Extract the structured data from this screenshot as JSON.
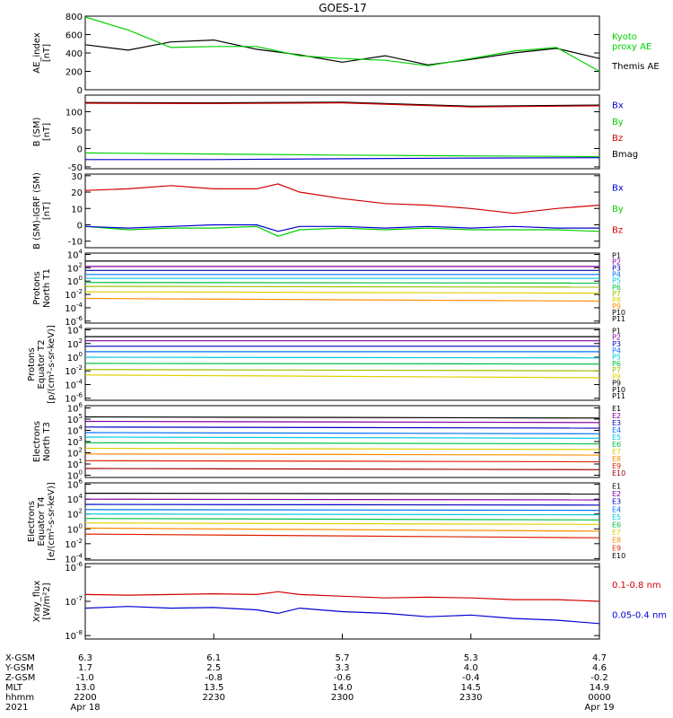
{
  "title": "GOES-17",
  "colors": {
    "black": "#000000",
    "green": "#00d000",
    "red": "#d00000",
    "blue": "#0000d0",
    "dark_red": "#8b0000",
    "purple": "#8000a0",
    "navy": "#0000c0",
    "blue2": "#0070ff",
    "cyan": "#00c8e0",
    "teal": "#00c8a0",
    "grn2": "#00c040",
    "yellow_green": "#a0c000",
    "yellow": "#e0d000",
    "orange": "#ff8c00",
    "red2": "#e02000",
    "maroon": "#a00000"
  },
  "chart_data": [
    {
      "type": "line",
      "id": "ae",
      "ylabel": "AE_index\n[nT]",
      "scale": "linear",
      "ylim": [
        0,
        800
      ],
      "yticks": [
        "0",
        "200",
        "400",
        "600",
        "800"
      ],
      "x": [
        0,
        10,
        20,
        30,
        40,
        50,
        60,
        70,
        80,
        90,
        100,
        110,
        120
      ],
      "series": [
        {
          "name": "Themis AE",
          "color": "#000000",
          "values": [
            490,
            430,
            520,
            540,
            440,
            380,
            300,
            370,
            270,
            330,
            400,
            450,
            340
          ]
        },
        {
          "name": "Kyoto proxy AE",
          "color": "#00d000",
          "values": [
            790,
            650,
            460,
            470,
            470,
            370,
            340,
            320,
            260,
            340,
            420,
            460,
            200
          ]
        }
      ],
      "legend": [
        "Kyoto\nproxy AE",
        "Themis AE"
      ]
    },
    {
      "type": "line",
      "id": "bsm",
      "ylabel": "B (SM)\n[nT]",
      "scale": "linear",
      "ylim": [
        -55,
        145
      ],
      "yticks": [
        "-50",
        "0",
        "50",
        "100"
      ],
      "x": [
        0,
        30,
        60,
        90,
        120
      ],
      "series": [
        {
          "name": "Bmag",
          "color": "#000000",
          "values": [
            125,
            124,
            126,
            115,
            118
          ]
        },
        {
          "name": "Bz",
          "color": "#d00000",
          "values": [
            123,
            122,
            124,
            113,
            116
          ]
        },
        {
          "name": "By",
          "color": "#00d000",
          "values": [
            -12,
            -15,
            -18,
            -20,
            -22
          ]
        },
        {
          "name": "Bx",
          "color": "#0000d0",
          "values": [
            -30,
            -30,
            -28,
            -26,
            -25
          ]
        }
      ],
      "legend": [
        "Bx",
        "By",
        "Bz",
        "Bmag"
      ]
    },
    {
      "type": "line",
      "id": "bsm_igrf",
      "ylabel": "B (SM)-IGRF (SM)\n[nT]",
      "scale": "linear",
      "ylim": [
        -14,
        31
      ],
      "yticks": [
        "-10",
        "0",
        "10",
        "20",
        "30"
      ],
      "x": [
        0,
        10,
        20,
        30,
        40,
        45,
        50,
        60,
        70,
        80,
        90,
        100,
        110,
        120
      ],
      "series": [
        {
          "name": "Bz",
          "color": "#d00000",
          "values": [
            21,
            22,
            24,
            22,
            22,
            25,
            20,
            16,
            13,
            12,
            10,
            7,
            10,
            12
          ]
        },
        {
          "name": "By",
          "color": "#00d000",
          "values": [
            -1,
            -3,
            -2,
            -2,
            -1,
            -7,
            -3,
            -2,
            -3,
            -2,
            -3,
            -3,
            -3,
            -4
          ]
        },
        {
          "name": "Bx",
          "color": "#0000d0",
          "values": [
            -1,
            -2,
            -1,
            0,
            0,
            -4,
            -1,
            -1,
            -2,
            -1,
            -2,
            -1,
            -2,
            -2
          ]
        }
      ],
      "legend": [
        "Bx",
        "By",
        "Bz"
      ]
    },
    {
      "type": "line",
      "id": "protons_t1",
      "ylabel": "Protons\nNorth T1",
      "scale": "log",
      "ylim": [
        -6.3,
        4.2
      ],
      "yticks": [
        "10^-6",
        "10^-4",
        "10^-2",
        "10^0",
        "10^2",
        "10^4"
      ],
      "x": [
        0,
        120
      ],
      "series": [
        {
          "name": "P1",
          "color": "#000000",
          "values": [
            3.0,
            3.0
          ]
        },
        {
          "name": "P2",
          "color": "#8000a0",
          "values": [
            2.2,
            2.2
          ]
        },
        {
          "name": "P3",
          "color": "#0000c0",
          "values": [
            1.6,
            1.6
          ]
        },
        {
          "name": "P4",
          "color": "#0070ff",
          "values": [
            1.0,
            1.0
          ]
        },
        {
          "name": "P5",
          "color": "#00c8e0",
          "values": [
            0.4,
            0.4
          ]
        },
        {
          "name": "P6",
          "color": "#00c040",
          "values": [
            -0.2,
            -0.3
          ]
        },
        {
          "name": "P7",
          "color": "#a0c000",
          "values": [
            -0.8,
            -0.9
          ]
        },
        {
          "name": "P8",
          "color": "#e0d000",
          "values": [
            -1.6,
            -1.8
          ]
        },
        {
          "name": "P9",
          "color": "#ff8c00",
          "values": [
            -2.6,
            -3.0
          ]
        }
      ],
      "legend": [
        "P1",
        "P2",
        "P3",
        "P4",
        "P5",
        "P6",
        "P7",
        "P8",
        "P9",
        "P10",
        "P11"
      ]
    },
    {
      "type": "line",
      "id": "protons_t2",
      "ylabel": "Protons\nEquator T2\n[p/(cm²-s-sr-keV)]",
      "scale": "log",
      "ylim": [
        -6.3,
        4.2
      ],
      "yticks": [
        "10^-6",
        "10^-4",
        "10^-2",
        "10^0",
        "10^2",
        "10^4"
      ],
      "x": [
        0,
        120
      ],
      "series": [
        {
          "name": "P1",
          "color": "#000000",
          "values": [
            3.0,
            3.0
          ]
        },
        {
          "name": "P2",
          "color": "#8000a0",
          "values": [
            2.4,
            2.4
          ]
        },
        {
          "name": "P3",
          "color": "#0000c0",
          "values": [
            1.6,
            1.6
          ]
        },
        {
          "name": "P4",
          "color": "#0070ff",
          "values": [
            0.8,
            0.8
          ]
        },
        {
          "name": "P5",
          "color": "#00c8e0",
          "values": [
            0.0,
            -0.1
          ]
        },
        {
          "name": "P6",
          "color": "#00c040",
          "values": [
            -0.9,
            -1.0
          ]
        },
        {
          "name": "P7",
          "color": "#a0c000",
          "values": [
            -1.8,
            -2.0
          ]
        },
        {
          "name": "P8",
          "color": "#e0d000",
          "values": [
            -2.6,
            -3.0
          ]
        }
      ],
      "legend": [
        "P1",
        "P2",
        "P3",
        "P4",
        "P5",
        "P6",
        "P7",
        "P8",
        "P9",
        "P10",
        "P11"
      ]
    },
    {
      "type": "line",
      "id": "electrons_t3",
      "ylabel": "Electrons\nNorth T3",
      "scale": "log",
      "ylim": [
        -0.2,
        6.2
      ],
      "yticks": [
        "10^0",
        "10^1",
        "10^2",
        "10^3",
        "10^4",
        "10^5",
        "10^6"
      ],
      "x": [
        0,
        120
      ],
      "series": [
        {
          "name": "E1",
          "color": "#000000",
          "values": [
            5.2,
            5.1
          ]
        },
        {
          "name": "E2",
          "color": "#8000a0",
          "values": [
            4.8,
            4.7
          ]
        },
        {
          "name": "E3",
          "color": "#0000c0",
          "values": [
            4.3,
            4.2
          ]
        },
        {
          "name": "E4",
          "color": "#0070ff",
          "values": [
            3.8,
            3.7
          ]
        },
        {
          "name": "E5",
          "color": "#00c8e0",
          "values": [
            3.4,
            3.3
          ]
        },
        {
          "name": "E6",
          "color": "#00c040",
          "values": [
            2.9,
            2.8
          ]
        },
        {
          "name": "E7",
          "color": "#e0d000",
          "values": [
            2.4,
            2.3
          ]
        },
        {
          "name": "E8",
          "color": "#ff8c00",
          "values": [
            1.9,
            1.8
          ]
        },
        {
          "name": "E9",
          "color": "#e02000",
          "values": [
            1.3,
            1.2
          ]
        },
        {
          "name": "E10",
          "color": "#a00000",
          "values": [
            0.6,
            0.5
          ]
        }
      ],
      "legend": [
        "E1",
        "E2",
        "E3",
        "E4",
        "E5",
        "E6",
        "E7",
        "E8",
        "E9",
        "E10"
      ]
    },
    {
      "type": "line",
      "id": "electrons_t4",
      "ylabel": "Electrons\nEquator T4\n[e/(cm²-s-sr-keV)]",
      "scale": "log",
      "ylim": [
        -4.2,
        6.2
      ],
      "yticks": [
        "10^-4",
        "10^-2",
        "10^0",
        "10^2",
        "10^4",
        "10^6"
      ],
      "x": [
        0,
        120
      ],
      "series": [
        {
          "name": "E1",
          "color": "#000000",
          "values": [
            4.8,
            4.7
          ]
        },
        {
          "name": "E2",
          "color": "#8000a0",
          "values": [
            4.0,
            3.9
          ]
        },
        {
          "name": "E3",
          "color": "#0000c0",
          "values": [
            3.3,
            3.2
          ]
        },
        {
          "name": "E4",
          "color": "#0070ff",
          "values": [
            2.6,
            2.5
          ]
        },
        {
          "name": "E5",
          "color": "#00c8e0",
          "values": [
            2.0,
            1.9
          ]
        },
        {
          "name": "E6",
          "color": "#00c040",
          "values": [
            1.4,
            1.2
          ]
        },
        {
          "name": "E7",
          "color": "#e0d000",
          "values": [
            0.8,
            0.6
          ]
        },
        {
          "name": "E8",
          "color": "#ff8c00",
          "values": [
            0.1,
            -0.3
          ]
        },
        {
          "name": "E9",
          "color": "#e02000",
          "values": [
            -0.7,
            -1.2
          ]
        }
      ],
      "legend": [
        "E1",
        "E2",
        "E3",
        "E4",
        "E5",
        "E6",
        "E7",
        "E8",
        "E9",
        "E10"
      ]
    },
    {
      "type": "line",
      "id": "xray",
      "ylabel": "Xray_flux\n[W/m²2]",
      "scale": "log",
      "ylim": [
        -8.1,
        -5.9
      ],
      "yticks": [
        "10^-8",
        "10^-7",
        "10^-6"
      ],
      "x": [
        0,
        10,
        20,
        30,
        40,
        45,
        50,
        60,
        70,
        80,
        90,
        100,
        110,
        120
      ],
      "series": [
        {
          "name": "0.1-0.8 nm",
          "color": "#d00000",
          "values": [
            -6.8,
            -6.82,
            -6.8,
            -6.78,
            -6.8,
            -6.72,
            -6.8,
            -6.85,
            -6.9,
            -6.88,
            -6.9,
            -6.95,
            -6.95,
            -7.0
          ]
        },
        {
          "name": "0.05-0.4 nm",
          "color": "#0000d0",
          "values": [
            -7.2,
            -7.15,
            -7.2,
            -7.18,
            -7.25,
            -7.35,
            -7.2,
            -7.3,
            -7.35,
            -7.45,
            -7.4,
            -7.5,
            -7.55,
            -7.65
          ]
        }
      ],
      "legend": [
        "0.1-0.8 nm",
        "0.05-0.4 nm"
      ]
    }
  ],
  "xaxis": {
    "row_labels": [
      "X-GSM",
      "Y-GSM",
      "Z-GSM",
      "MLT",
      "hhmm",
      "2021"
    ],
    "ticks": [
      {
        "x": 0,
        "values": [
          "6.3",
          "1.7",
          "-1.0",
          "13.0",
          "2200",
          "Apr 18"
        ]
      },
      {
        "x": 30,
        "values": [
          "6.1",
          "2.5",
          "-0.8",
          "13.5",
          "2230",
          ""
        ]
      },
      {
        "x": 60,
        "values": [
          "5.7",
          "3.3",
          "-0.6",
          "14.0",
          "2300",
          ""
        ]
      },
      {
        "x": 90,
        "values": [
          "5.3",
          "4.0",
          "-0.4",
          "14.5",
          "2330",
          ""
        ]
      },
      {
        "x": 120,
        "values": [
          "4.7",
          "4.6",
          "-0.2",
          "14.9",
          "0000",
          "Apr 19"
        ]
      }
    ]
  }
}
